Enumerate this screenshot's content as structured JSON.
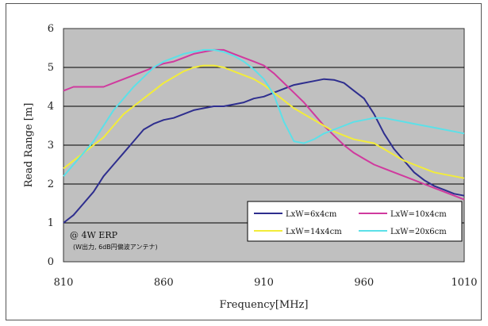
{
  "chart_data": {
    "type": "line",
    "title": "",
    "xlabel": "Frequency[MHz]",
    "ylabel": "Read Range [m]",
    "xlim": [
      810,
      1010
    ],
    "ylim": [
      0,
      6
    ],
    "x_ticks": [
      "810",
      "860",
      "910",
      "960",
      "1010"
    ],
    "y_ticks": [
      "0",
      "1",
      "2",
      "3",
      "4",
      "5",
      "6"
    ],
    "grid": "horizontal",
    "plot_background": "#c0c0c0",
    "legend_position": "bottom-right",
    "annotations": [
      "@ 4W ERP",
      "(W出力, 6dB円偏波アンテナ)"
    ],
    "series": [
      {
        "name": "LxW=6x4cm",
        "color": "#2e2e8e",
        "points": [
          [
            810,
            1.0
          ],
          [
            815,
            1.2
          ],
          [
            820,
            1.5
          ],
          [
            825,
            1.8
          ],
          [
            830,
            2.2
          ],
          [
            835,
            2.5
          ],
          [
            840,
            2.8
          ],
          [
            845,
            3.1
          ],
          [
            850,
            3.4
          ],
          [
            855,
            3.55
          ],
          [
            860,
            3.65
          ],
          [
            865,
            3.7
          ],
          [
            870,
            3.8
          ],
          [
            875,
            3.9
          ],
          [
            880,
            3.95
          ],
          [
            885,
            4.0
          ],
          [
            890,
            4.0
          ],
          [
            895,
            4.05
          ],
          [
            900,
            4.1
          ],
          [
            905,
            4.2
          ],
          [
            910,
            4.25
          ],
          [
            915,
            4.35
          ],
          [
            920,
            4.45
          ],
          [
            925,
            4.55
          ],
          [
            930,
            4.6
          ],
          [
            935,
            4.65
          ],
          [
            940,
            4.7
          ],
          [
            945,
            4.68
          ],
          [
            950,
            4.6
          ],
          [
            955,
            4.4
          ],
          [
            960,
            4.2
          ],
          [
            965,
            3.8
          ],
          [
            970,
            3.3
          ],
          [
            975,
            2.9
          ],
          [
            980,
            2.6
          ],
          [
            985,
            2.3
          ],
          [
            990,
            2.1
          ],
          [
            995,
            1.95
          ],
          [
            1000,
            1.85
          ],
          [
            1005,
            1.75
          ],
          [
            1010,
            1.7
          ]
        ]
      },
      {
        "name": "LxW=10x4cm",
        "color": "#d03a9e",
        "points": [
          [
            810,
            4.4
          ],
          [
            815,
            4.5
          ],
          [
            820,
            4.5
          ],
          [
            825,
            4.5
          ],
          [
            830,
            4.5
          ],
          [
            835,
            4.6
          ],
          [
            840,
            4.7
          ],
          [
            845,
            4.8
          ],
          [
            850,
            4.9
          ],
          [
            855,
            5.0
          ],
          [
            860,
            5.1
          ],
          [
            865,
            5.15
          ],
          [
            870,
            5.25
          ],
          [
            875,
            5.35
          ],
          [
            880,
            5.4
          ],
          [
            885,
            5.45
          ],
          [
            890,
            5.45
          ],
          [
            895,
            5.35
          ],
          [
            900,
            5.25
          ],
          [
            905,
            5.15
          ],
          [
            910,
            5.05
          ],
          [
            915,
            4.85
          ],
          [
            920,
            4.6
          ],
          [
            925,
            4.35
          ],
          [
            930,
            4.1
          ],
          [
            935,
            3.8
          ],
          [
            940,
            3.5
          ],
          [
            945,
            3.25
          ],
          [
            950,
            3.0
          ],
          [
            955,
            2.8
          ],
          [
            960,
            2.65
          ],
          [
            965,
            2.5
          ],
          [
            970,
            2.4
          ],
          [
            975,
            2.3
          ],
          [
            980,
            2.2
          ],
          [
            985,
            2.1
          ],
          [
            990,
            2.0
          ],
          [
            995,
            1.9
          ],
          [
            1000,
            1.8
          ],
          [
            1005,
            1.7
          ],
          [
            1010,
            1.6
          ]
        ]
      },
      {
        "name": "LxW=14x4cm",
        "color": "#f2ec3a",
        "points": [
          [
            810,
            2.4
          ],
          [
            815,
            2.6
          ],
          [
            820,
            2.8
          ],
          [
            825,
            3.0
          ],
          [
            830,
            3.2
          ],
          [
            835,
            3.5
          ],
          [
            840,
            3.8
          ],
          [
            845,
            4.0
          ],
          [
            850,
            4.2
          ],
          [
            855,
            4.4
          ],
          [
            860,
            4.6
          ],
          [
            865,
            4.75
          ],
          [
            870,
            4.9
          ],
          [
            875,
            5.0
          ],
          [
            880,
            5.05
          ],
          [
            885,
            5.05
          ],
          [
            890,
            5.0
          ],
          [
            895,
            4.9
          ],
          [
            900,
            4.8
          ],
          [
            905,
            4.7
          ],
          [
            910,
            4.55
          ],
          [
            915,
            4.35
          ],
          [
            920,
            4.15
          ],
          [
            925,
            3.95
          ],
          [
            930,
            3.8
          ],
          [
            935,
            3.65
          ],
          [
            940,
            3.5
          ],
          [
            945,
            3.35
          ],
          [
            950,
            3.25
          ],
          [
            955,
            3.15
          ],
          [
            960,
            3.1
          ],
          [
            965,
            3.05
          ],
          [
            970,
            2.9
          ],
          [
            975,
            2.75
          ],
          [
            980,
            2.6
          ],
          [
            985,
            2.5
          ],
          [
            990,
            2.4
          ],
          [
            995,
            2.3
          ],
          [
            1000,
            2.25
          ],
          [
            1005,
            2.2
          ],
          [
            1010,
            2.15
          ]
        ]
      },
      {
        "name": "LxW=20x6cm",
        "color": "#5ce0e8",
        "points": [
          [
            810,
            2.2
          ],
          [
            815,
            2.5
          ],
          [
            820,
            2.8
          ],
          [
            825,
            3.1
          ],
          [
            830,
            3.5
          ],
          [
            835,
            3.9
          ],
          [
            840,
            4.2
          ],
          [
            845,
            4.5
          ],
          [
            850,
            4.75
          ],
          [
            855,
            5.0
          ],
          [
            860,
            5.15
          ],
          [
            865,
            5.25
          ],
          [
            870,
            5.35
          ],
          [
            875,
            5.4
          ],
          [
            880,
            5.45
          ],
          [
            885,
            5.45
          ],
          [
            890,
            5.4
          ],
          [
            895,
            5.3
          ],
          [
            900,
            5.15
          ],
          [
            905,
            4.95
          ],
          [
            910,
            4.7
          ],
          [
            915,
            4.3
          ],
          [
            920,
            3.6
          ],
          [
            925,
            3.1
          ],
          [
            930,
            3.05
          ],
          [
            935,
            3.15
          ],
          [
            940,
            3.3
          ],
          [
            945,
            3.4
          ],
          [
            950,
            3.5
          ],
          [
            955,
            3.6
          ],
          [
            960,
            3.65
          ],
          [
            965,
            3.7
          ],
          [
            970,
            3.7
          ],
          [
            975,
            3.65
          ],
          [
            980,
            3.6
          ],
          [
            985,
            3.55
          ],
          [
            990,
            3.5
          ],
          [
            995,
            3.45
          ],
          [
            1000,
            3.4
          ],
          [
            1005,
            3.35
          ],
          [
            1010,
            3.3
          ]
        ]
      }
    ]
  }
}
